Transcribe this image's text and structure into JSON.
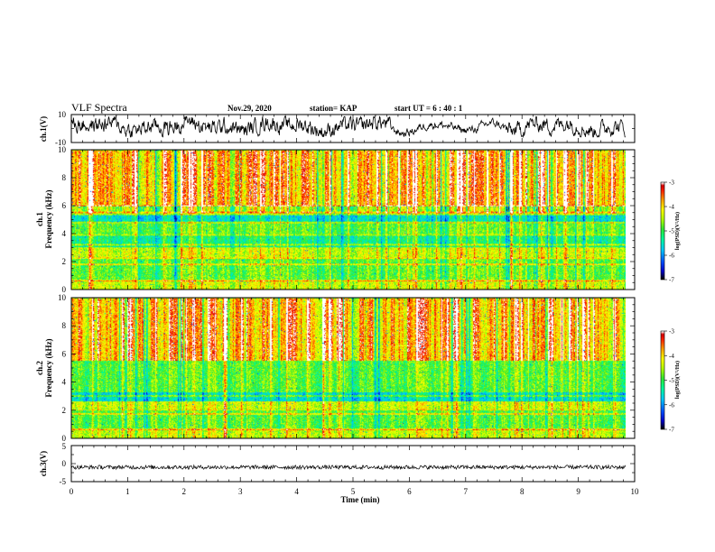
{
  "header": {
    "title": "VLF Spectra",
    "date": "Nov.29, 2020",
    "station": "station= KAP",
    "start_ut": "start  UT =   6  : 40 : 1"
  },
  "chart_data": [
    {
      "type": "line",
      "name": "ch1-waveform",
      "ylabel": "ch.1(V)",
      "ylim": [
        -10,
        10
      ],
      "yticks": [
        "10",
        "-10"
      ],
      "xlim": [
        0,
        10
      ],
      "note": "dense waveform trace roughly between -5 and +8 V"
    },
    {
      "type": "heatmap",
      "name": "ch1-spectrogram",
      "panel_label": "ch.1",
      "ylabel": "Frequency  (kHz)",
      "ylim": [
        0,
        10
      ],
      "yticks": [
        "0",
        "2",
        "4",
        "6",
        "8",
        "10"
      ],
      "xlim": [
        0,
        10
      ],
      "colorbar": {
        "label": "log(PSD)(V²/Hz)",
        "range": [
          -7,
          -3
        ],
        "ticks": [
          "-3",
          "-4",
          "-5",
          "-6",
          "-7"
        ]
      },
      "bands_khz": [
        {
          "from": 0,
          "to": 0.6,
          "level": "yellow-green"
        },
        {
          "from": 0.6,
          "to": 2.3,
          "level": "green"
        },
        {
          "from": 2.3,
          "to": 3.0,
          "level": "yellow-green"
        },
        {
          "from": 3.0,
          "to": 4.0,
          "level": "cyan-green"
        },
        {
          "from": 4.0,
          "to": 4.8,
          "level": "green"
        },
        {
          "from": 4.8,
          "to": 5.3,
          "level": "cyan"
        },
        {
          "from": 5.3,
          "to": 6.0,
          "level": "green-yellow"
        },
        {
          "from": 6.0,
          "to": 10.0,
          "level": "yellow-red"
        }
      ],
      "lines_khz": [
        0.6,
        1.8,
        2.2,
        3.2,
        3.9,
        4.8,
        5.5,
        6.0
      ]
    },
    {
      "type": "heatmap",
      "name": "ch2-spectrogram",
      "panel_label": "ch.2",
      "ylabel": "Frequency  (kHz)",
      "ylim": [
        0,
        10
      ],
      "yticks": [
        "0",
        "2",
        "4",
        "6",
        "8",
        "10"
      ],
      "xlim": [
        0,
        10
      ],
      "colorbar": {
        "label": "log(PSD)(V²/Hz)",
        "range": [
          -7,
          -3
        ],
        "ticks": [
          "-3",
          "-4",
          "-5",
          "-6",
          "-7"
        ]
      },
      "bands_khz": [
        {
          "from": 0,
          "to": 0.6,
          "level": "yellow-green"
        },
        {
          "from": 0.6,
          "to": 2.0,
          "level": "green"
        },
        {
          "from": 2.0,
          "to": 2.6,
          "level": "yellow-green"
        },
        {
          "from": 2.6,
          "to": 3.4,
          "level": "cyan"
        },
        {
          "from": 3.4,
          "to": 5.5,
          "level": "green"
        },
        {
          "from": 5.5,
          "to": 10.0,
          "level": "yellow-red"
        }
      ],
      "lines_khz": [
        0.6,
        1.7,
        2.0,
        3.0,
        3.3
      ]
    },
    {
      "type": "line",
      "name": "ch3-waveform",
      "ylabel": "ch.3(V)",
      "ylim": [
        -5,
        5
      ],
      "yticks": [
        "5",
        "0",
        "-5"
      ],
      "xlim": [
        0,
        10
      ],
      "xlabel": "Time  (min)",
      "xticks": [
        "0",
        "1",
        "2",
        "3",
        "4",
        "5",
        "6",
        "7",
        "8",
        "9",
        "10"
      ],
      "note": "flat dense trace around -1 V"
    }
  ],
  "colors": {
    "colormap": [
      "#000000",
      "#0000c8",
      "#0050ff",
      "#00c8ff",
      "#00ff96",
      "#32e632",
      "#b4ff00",
      "#ffff00",
      "#ffa000",
      "#ff1e00",
      "#d20000",
      "#ffffff"
    ],
    "trace": "#000000"
  }
}
